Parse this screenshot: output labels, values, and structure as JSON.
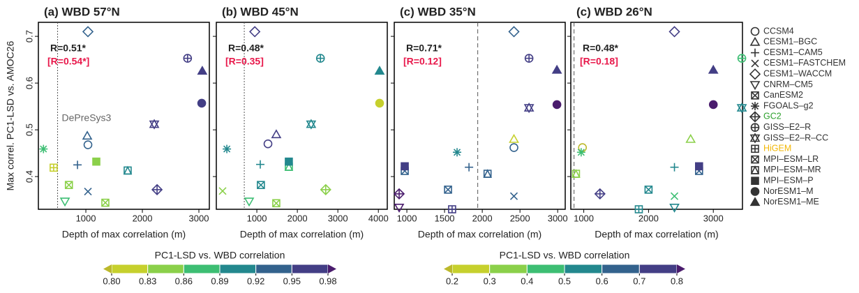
{
  "chart_data": [
    {
      "type": "scatter",
      "title": "(a) WBD 57°N",
      "xlabel": "Depth of max correlation (m)",
      "ylabel": "Max correl. PC1-LSD vs. AMOC26",
      "xlim": [
        160,
        3185
      ],
      "xticks": [
        1000,
        2000,
        3000
      ],
      "ylim": [
        0.33,
        0.73
      ],
      "yticks": [
        0.4,
        0.5,
        0.6,
        0.7
      ],
      "r_text": "R=0.51*",
      "r_bracket": "[R=0.54*]",
      "vline": 500,
      "vline_style": "dotted",
      "vline_label": "DePreSys3",
      "x": [
        1037,
        1025,
        852,
        1037,
        1037,
        630,
        700,
        250,
        2260,
        2800,
        2210,
        430,
        1345,
        1740,
        1185,
        3050,
        3060
      ],
      "values": [
        0.468,
        0.487,
        0.425,
        0.368,
        0.71,
        0.347,
        0.382,
        0.459,
        0.372,
        0.653,
        0.512,
        0.419,
        0.344,
        0.413,
        0.432,
        0.557,
        0.626
      ],
      "colors": [
        "#33628d",
        "#33628d",
        "#33628d",
        "#33628d",
        "#33628d",
        "#3dbe73",
        "#8bd04a",
        "#3dbe73",
        "#433e85",
        "#433e85",
        "#433e85",
        "#c6d02d",
        "#8bd04a",
        "#23888e",
        "#8bd04a",
        "#433e85",
        "#433e85"
      ]
    },
    {
      "type": "scatter",
      "title": "(b) WBD 45°N",
      "xlabel": "Depth of max correlation (m)",
      "xlim": [
        0,
        4220
      ],
      "xticks": [
        1000,
        2000,
        3000,
        4000
      ],
      "ylim": [
        0.33,
        0.73
      ],
      "yticks": [
        0.4,
        0.5,
        0.6,
        0.7
      ],
      "r_text": "R=0.48*",
      "r_bracket": "[R=0.35]",
      "vline": 690,
      "vline_style": "dotted",
      "x": [
        1275,
        1480,
        1085,
        155,
        950,
        810,
        1100,
        260,
        2700,
        2570,
        2340,
        null,
        1480,
        1790,
        1790,
        4030,
        4030
      ],
      "values": [
        0.47,
        0.49,
        0.426,
        0.369,
        0.71,
        0.347,
        0.382,
        0.459,
        0.372,
        0.653,
        0.512,
        null,
        0.343,
        0.421,
        0.432,
        0.557,
        0.626
      ],
      "colors": [
        "#433e85",
        "#433e85",
        "#23888e",
        "#8bd04a",
        "#433e85",
        "#3dbe73",
        "#23888e",
        "#23888e",
        "#8bd04a",
        "#23888e",
        "#23888e",
        null,
        "#8bd04a",
        "#3dbe73",
        "#23888e",
        "#c6d02d",
        "#23888e"
      ]
    },
    {
      "type": "scatter",
      "title": "(c) WBD 35°N",
      "xlabel": "Depth of max correlation (m)",
      "xlim": [
        833,
        3100
      ],
      "xticks": [
        1000,
        1500,
        2000,
        2500,
        3000
      ],
      "ylim": [
        0.33,
        0.73
      ],
      "yticks": [
        0.4,
        0.5,
        0.6,
        0.7
      ],
      "r_text": "R=0.71*",
      "r_bracket": "[R=0.12]",
      "vline": 1940,
      "vline_style": "dashed",
      "x": [
        2420,
        2420,
        1824,
        2420,
        2420,
        898,
        1546,
        1666,
        898,
        2620,
        2620,
        1600,
        972,
        2070,
        972,
        2990,
        2990
      ],
      "values": [
        0.462,
        0.48,
        0.42,
        0.358,
        0.71,
        0.334,
        0.372,
        0.452,
        0.363,
        0.653,
        0.547,
        0.33,
        0.412,
        0.406,
        0.422,
        0.554,
        0.628
      ],
      "colors": [
        "#33628d",
        "#c6d02d",
        "#33628d",
        "#33628d",
        "#33628d",
        "#4a1c6d",
        "#33628d",
        "#23888e",
        "#4a1c6d",
        "#433e85",
        "#433e85",
        "#433e85",
        "#33628d",
        "#33628d",
        "#433e85",
        "#4a1c6d",
        "#433e85"
      ]
    },
    {
      "type": "scatter",
      "title": "(c) WBD 26°N",
      "xlabel": "Depth of max correlation (m)",
      "xlim": [
        800,
        3450
      ],
      "xticks": [
        1000,
        2000,
        3000
      ],
      "ylim": [
        0.33,
        0.73
      ],
      "yticks": [
        0.4,
        0.5,
        0.6,
        0.7
      ],
      "r_text": "R=0.48*",
      "r_bracket": "[R=0.18]",
      "vline": 850,
      "vline_style": "dashed",
      "x": [
        980,
        2650,
        2400,
        2400,
        2400,
        2400,
        2000,
        960,
        1250,
        3440,
        3440,
        1850,
        2780,
        880,
        2780,
        3000,
        3000
      ],
      "values": [
        0.462,
        0.48,
        0.42,
        0.358,
        0.71,
        0.334,
        0.372,
        0.452,
        0.363,
        0.653,
        0.547,
        0.33,
        0.412,
        0.406,
        0.422,
        0.554,
        0.628
      ],
      "colors": [
        "#bcb92b",
        "#8bd04a",
        "#23888e",
        "#3dbe73",
        "#433e85",
        "#23888e",
        "#23888e",
        "#3dbe73",
        "#433e85",
        "#3dbe73",
        "#23888e",
        "#23888e",
        "#33628d",
        "#8bd04a",
        "#433e85",
        "#4a1c6d",
        "#433e85"
      ]
    }
  ],
  "legend": {
    "names": [
      "CCSM4",
      "CESM1–BGC",
      "CESM1–CAM5",
      "CESM1–FASTCHEM",
      "CESM1–WACCM",
      "CNRM–CM5",
      "CanESM2",
      "FGOALS–g2",
      "GC2",
      "GISS–E2–R",
      "GISS–E2–R–CC",
      "HiGEM",
      "MPI–ESM–LR",
      "MPI–ESM–MR",
      "MPI–ESM–P",
      "NorESM1–M",
      "NorESM1–ME"
    ],
    "markers": [
      "circle",
      "triangle",
      "plus",
      "cross",
      "diamond",
      "tri-down",
      "square-x",
      "asterisk",
      "diamond-plus",
      "circle-plus",
      "star6",
      "square-plus",
      "square-x",
      "square-tri",
      "square-filled",
      "circle-filled",
      "triangle-filled"
    ],
    "text_colors": [
      "#333",
      "#333",
      "#333",
      "#333",
      "#333",
      "#333",
      "#333",
      "#333",
      "#2ca02c",
      "#333",
      "#333",
      "#f2b705",
      "#333",
      "#333",
      "#333",
      "#333",
      "#333"
    ]
  },
  "colorbars": [
    {
      "label": "PC1-LSD vs. WBD correlation",
      "colors": [
        "#c6d02d",
        "#8bd04a",
        "#3dbe73",
        "#23888e",
        "#33628d",
        "#433e85"
      ],
      "extend_colors": [
        "#bcb92b",
        "#4a1c6d"
      ],
      "ticks": [
        {
          "value": 0.8,
          "label": "0.80"
        },
        0.83,
        0.86,
        0.89,
        0.92,
        0.95,
        0.98
      ]
    },
    {
      "label": "PC1-LSD vs. WBD correlation",
      "colors": [
        "#c6d02d",
        "#8bd04a",
        "#3dbe73",
        "#23888e",
        "#33628d",
        "#433e85"
      ],
      "extend_colors": [
        "#bcb92b",
        "#4a1c6d"
      ],
      "ticks": [
        0.2,
        0.3,
        0.4,
        0.5,
        0.6,
        0.7,
        0.8
      ]
    }
  ]
}
